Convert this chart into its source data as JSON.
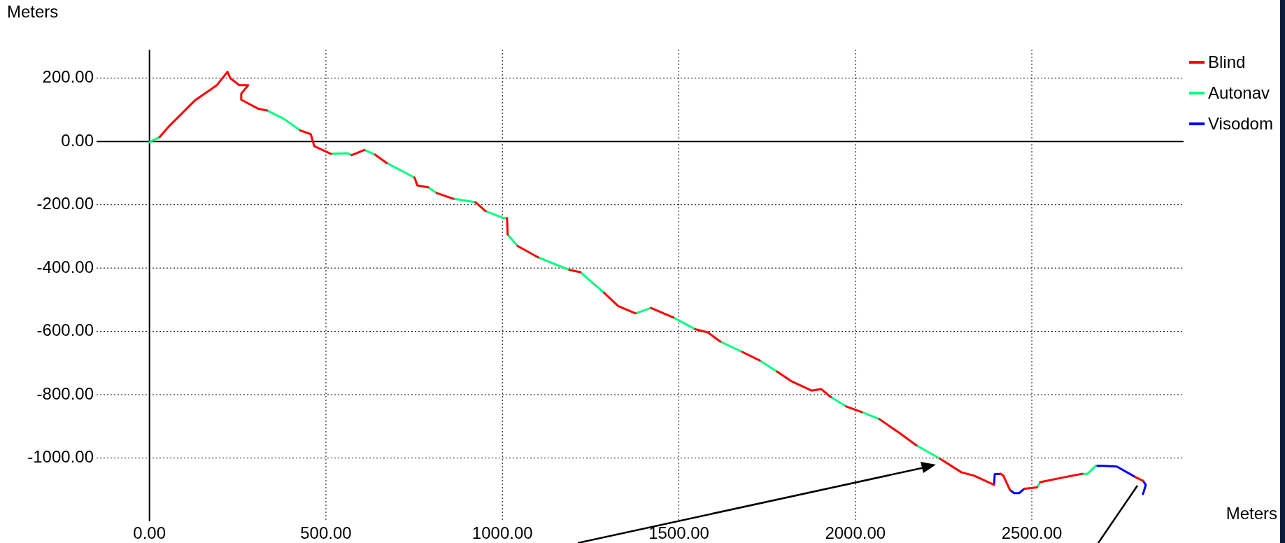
{
  "chart_data": {
    "type": "line",
    "xlabel": "Meters",
    "ylabel": "Meters",
    "xlim": [
      -150,
      2930
    ],
    "ylim": [
      -1200,
      290
    ],
    "xticks": [
      {
        "value": 0,
        "label": "0.00"
      },
      {
        "value": 500,
        "label": "500.00"
      },
      {
        "value": 1000,
        "label": "1000.00"
      },
      {
        "value": 1500,
        "label": "1500.00"
      },
      {
        "value": 2000,
        "label": "2000.00"
      },
      {
        "value": 2500,
        "label": "2500.00"
      }
    ],
    "yticks": [
      {
        "value": -1000,
        "label": "-1000.00"
      },
      {
        "value": -800,
        "label": "-800.00"
      },
      {
        "value": -600,
        "label": "-600.00"
      },
      {
        "value": -400,
        "label": "-400.00"
      },
      {
        "value": -200,
        "label": "-200.00"
      },
      {
        "value": 0,
        "label": "0.00"
      },
      {
        "value": 200,
        "label": "200.00"
      }
    ],
    "grid": true,
    "legend": "top right",
    "marker": "none",
    "line_style": "solid",
    "series": [
      {
        "name": "Blind",
        "color": "#ff0000",
        "x": [
          29,
          57,
          128,
          191,
          221,
          229,
          254,
          280,
          260,
          260,
          309,
          333,
          null,
          427,
          457,
          467,
          514,
          null,
          573,
          609,
          null,
          640,
          672,
          null,
          751,
          759,
          790,
          null,
          814,
          861,
          null,
          924,
          952,
          null,
          1013,
          1015,
          null,
          1043,
          1101,
          null,
          1190,
          1221,
          null,
          1288,
          1328,
          1377,
          null,
          1421,
          1484,
          null,
          1546,
          1582,
          1617,
          null,
          1680,
          1729,
          null,
          1778,
          1818,
          1876,
          1903,
          1930,
          null,
          1974,
          2018,
          null,
          2068,
          2125,
          2173,
          null,
          2240,
          2300,
          2337,
          2393,
          null,
          2412,
          2419,
          2438,
          null,
          2479,
          2515,
          null,
          2524,
          2591,
          2643,
          null,
          2793,
          2815
        ],
        "values": [
          14,
          50,
          129,
          178,
          220,
          200,
          178,
          178,
          151,
          132,
          103,
          98,
          null,
          35,
          23,
          -15,
          -39,
          null,
          -43,
          -27,
          null,
          -42,
          -68,
          null,
          -114,
          -139,
          -145,
          null,
          -163,
          -181,
          null,
          -192,
          -220,
          null,
          -242,
          -294,
          null,
          -330,
          -366,
          null,
          -406,
          -413,
          null,
          -478,
          -520,
          -543,
          null,
          -526,
          -556,
          null,
          -593,
          -603,
          -632,
          null,
          -665,
          -692,
          null,
          -727,
          -757,
          -787,
          -782,
          -807,
          null,
          -837,
          -855,
          null,
          -877,
          -921,
          -960,
          null,
          -1002,
          -1045,
          -1056,
          -1085,
          null,
          -1050,
          -1055,
          -1101,
          null,
          -1097,
          -1093,
          null,
          -1076,
          -1061,
          -1050,
          null,
          -1060,
          -1072
        ]
      },
      {
        "name": "Autonav",
        "color": "#00ff80",
        "x": [
          0,
          29,
          null,
          333,
          380,
          427,
          null,
          514,
          561,
          573,
          null,
          609,
          640,
          null,
          672,
          751,
          null,
          790,
          814,
          null,
          861,
          924,
          null,
          952,
          1003,
          1013,
          null,
          1015,
          1043,
          null,
          1101,
          1190,
          null,
          1221,
          1288,
          null,
          1377,
          1421,
          null,
          1484,
          1546,
          null,
          1617,
          1680,
          null,
          1729,
          1778,
          null,
          1930,
          1974,
          null,
          2018,
          2068,
          null,
          2173,
          2240,
          null,
          2515,
          2524,
          null,
          2643,
          2658,
          2681
        ],
        "values": [
          -2,
          14,
          null,
          98,
          72,
          35,
          null,
          -39,
          -37,
          -43,
          null,
          -27,
          -42,
          null,
          -68,
          -114,
          null,
          -145,
          -163,
          null,
          -181,
          -192,
          null,
          -220,
          -242,
          -242,
          null,
          -294,
          -330,
          null,
          -366,
          -406,
          null,
          -413,
          -478,
          null,
          -543,
          -526,
          null,
          -556,
          -593,
          null,
          -632,
          -665,
          null,
          -692,
          -727,
          null,
          -807,
          -837,
          null,
          -855,
          -877,
          null,
          -960,
          -1002,
          null,
          -1093,
          -1076,
          null,
          -1050,
          -1050,
          -1025
        ]
      },
      {
        "name": "Visodom",
        "color": "#0000ff",
        "x": [
          2393,
          2395,
          2412,
          null,
          2438,
          2450,
          2464,
          2479,
          null,
          2681,
          2703,
          2741,
          2793,
          null,
          2815,
          2823,
          2815
        ],
        "values": [
          -1085,
          -1051,
          -1050,
          null,
          -1101,
          -1111,
          -1111,
          -1097,
          null,
          -1025,
          -1025,
          -1027,
          -1060,
          null,
          -1072,
          -1085,
          -1114
        ]
      }
    ]
  }
}
